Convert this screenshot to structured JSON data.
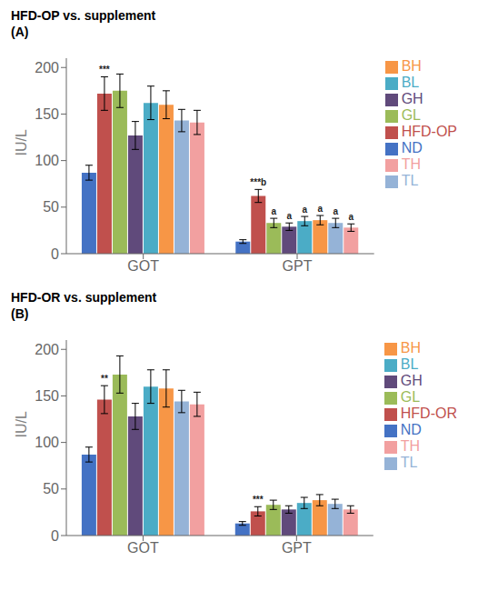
{
  "chart_data": [
    {
      "type": "bar",
      "title": "HFD-OP vs. supplement",
      "subtitle": "(A)",
      "ylabel": "IU/L",
      "categories": [
        "GOT",
        "GPT"
      ],
      "series": [
        {
          "name": "ND",
          "color": "#4472c4",
          "values": [
            87,
            13
          ],
          "errors": [
            8,
            2
          ]
        },
        {
          "name": "HFD-OP",
          "color": "#c0504d",
          "values": [
            172,
            62
          ],
          "errors": [
            18,
            7
          ],
          "annotations": [
            "***",
            "***b"
          ]
        },
        {
          "name": "GL",
          "color": "#9bbb59",
          "values": [
            175,
            33
          ],
          "errors": [
            18,
            5
          ],
          "annotations": [
            null,
            "a"
          ]
        },
        {
          "name": "GH",
          "color": "#604a7b",
          "values": [
            127,
            29
          ],
          "errors": [
            15,
            4
          ],
          "annotations": [
            null,
            "a"
          ]
        },
        {
          "name": "BL",
          "color": "#4bacc6",
          "values": [
            162,
            35
          ],
          "errors": [
            18,
            5
          ],
          "annotations": [
            null,
            "a"
          ]
        },
        {
          "name": "BH",
          "color": "#f79646",
          "values": [
            160,
            36
          ],
          "errors": [
            15,
            5
          ],
          "annotations": [
            null,
            "a"
          ]
        },
        {
          "name": "TL",
          "color": "#95b3d7",
          "values": [
            143,
            33
          ],
          "errors": [
            12,
            5
          ],
          "annotations": [
            null,
            "a"
          ]
        },
        {
          "name": "TH",
          "color": "#f2a0a0",
          "values": [
            141,
            28
          ],
          "errors": [
            13,
            4
          ],
          "annotations": [
            null,
            "a"
          ]
        }
      ],
      "ylim": [
        0,
        210
      ],
      "yticks": [
        0,
        50,
        100,
        150,
        200
      ],
      "grid": false,
      "legend": "right"
    },
    {
      "type": "bar",
      "title": "HFD-OR vs. supplement",
      "subtitle": "(B)",
      "ylabel": "IU/L",
      "categories": [
        "GOT",
        "GPT"
      ],
      "series": [
        {
          "name": "ND",
          "color": "#4472c4",
          "values": [
            87,
            13
          ],
          "errors": [
            8,
            2
          ]
        },
        {
          "name": "HFD-OR",
          "color": "#c0504d",
          "values": [
            146,
            26
          ],
          "errors": [
            15,
            5
          ],
          "annotations": [
            "**",
            "***"
          ]
        },
        {
          "name": "GL",
          "color": "#9bbb59",
          "values": [
            173,
            33
          ],
          "errors": [
            20,
            5
          ]
        },
        {
          "name": "GH",
          "color": "#604a7b",
          "values": [
            128,
            28
          ],
          "errors": [
            14,
            4
          ]
        },
        {
          "name": "BL",
          "color": "#4bacc6",
          "values": [
            160,
            35
          ],
          "errors": [
            18,
            6
          ]
        },
        {
          "name": "BH",
          "color": "#f79646",
          "values": [
            158,
            38
          ],
          "errors": [
            20,
            6
          ]
        },
        {
          "name": "TL",
          "color": "#95b3d7",
          "values": [
            144,
            34
          ],
          "errors": [
            12,
            5
          ]
        },
        {
          "name": "TH",
          "color": "#f2a0a0",
          "values": [
            141,
            28
          ],
          "errors": [
            13,
            4
          ]
        }
      ],
      "ylim": [
        0,
        210
      ],
      "yticks": [
        0,
        50,
        100,
        150,
        200
      ],
      "grid": false,
      "legend": "right"
    }
  ]
}
